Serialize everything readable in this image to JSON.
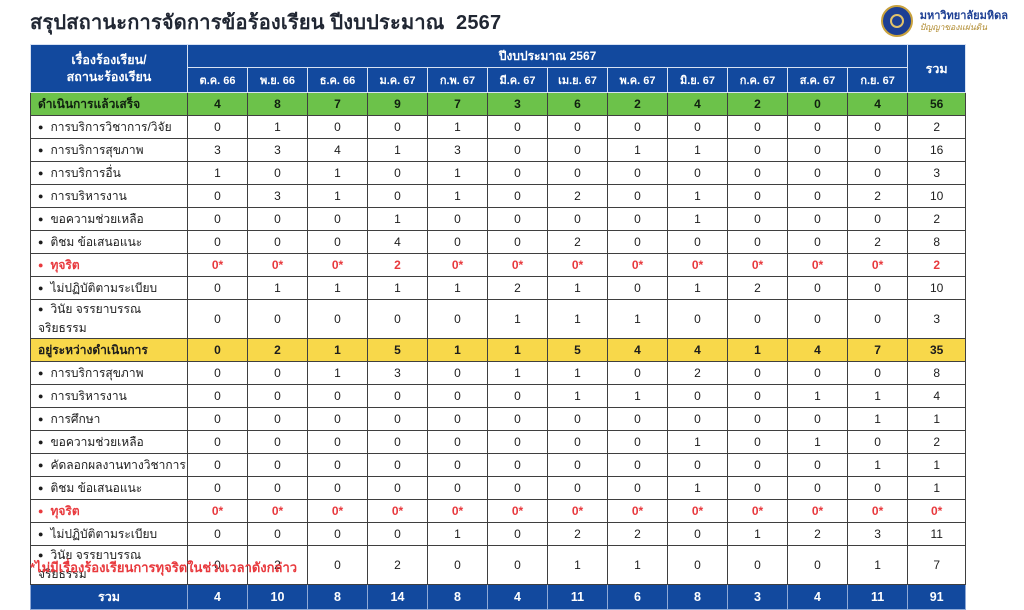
{
  "page": {
    "title": "สรุปสถานะการจัดการข้อร้องเรียน ปีงบประมาณ  2567",
    "footnote": "*ไม่มีเรื่องร้องเรียนการทุจริตในช่วงเวลาดังกล่าว",
    "logo": {
      "org_name": "มหาวิทยาลัยมหิดล",
      "org_motto": "ปัญญาของแผ่นดิน"
    }
  },
  "colors": {
    "header_blue": "#12499E",
    "done_green": "#6CC24A",
    "pending_yellow": "#F8D84A",
    "total_blue": "#12499E",
    "alert_red": "#E8393D"
  },
  "table": {
    "corner_line1": "เรื่องร้องเรียน/",
    "corner_line2": "สถานะร้องเรียน",
    "year_header": "ปีงบประมาณ 2567",
    "total_header": "รวม",
    "months": [
      "ต.ค. 66",
      "พ.ย. 66",
      "ธ.ค. 66",
      "ม.ค. 67",
      "ก.พ. 67",
      "มี.ค. 67",
      "เม.ย. 67",
      "พ.ค. 67",
      "มิ.ย. 67",
      "ก.ค. 67",
      "ส.ค. 67",
      "ก.ย. 67"
    ],
    "rows": [
      {
        "label": "ดำเนินการแล้วเสร็จ",
        "type": "done-section",
        "values": [
          "4",
          "8",
          "7",
          "9",
          "7",
          "3",
          "6",
          "2",
          "4",
          "2",
          "0",
          "4"
        ],
        "total": "56"
      },
      {
        "label": "การบริการวิชาการ/วิจัย",
        "type": "item",
        "values": [
          "0",
          "1",
          "0",
          "0",
          "1",
          "0",
          "0",
          "0",
          "0",
          "0",
          "0",
          "0"
        ],
        "total": "2"
      },
      {
        "label": "การบริการสุขภาพ",
        "type": "item",
        "values": [
          "3",
          "3",
          "4",
          "1",
          "3",
          "0",
          "0",
          "1",
          "1",
          "0",
          "0",
          "0"
        ],
        "total": "16"
      },
      {
        "label": "การบริการอื่น",
        "type": "item",
        "values": [
          "1",
          "0",
          "1",
          "0",
          "1",
          "0",
          "0",
          "0",
          "0",
          "0",
          "0",
          "0"
        ],
        "total": "3"
      },
      {
        "label": "การบริหารงาน",
        "type": "item",
        "values": [
          "0",
          "3",
          "1",
          "0",
          "1",
          "0",
          "2",
          "0",
          "1",
          "0",
          "0",
          "2"
        ],
        "total": "10"
      },
      {
        "label": "ขอความช่วยเหลือ",
        "type": "item",
        "values": [
          "0",
          "0",
          "0",
          "1",
          "0",
          "0",
          "0",
          "0",
          "1",
          "0",
          "0",
          "0"
        ],
        "total": "2"
      },
      {
        "label": "ติชม ข้อเสนอแนะ",
        "type": "item",
        "values": [
          "0",
          "0",
          "0",
          "4",
          "0",
          "0",
          "2",
          "0",
          "0",
          "0",
          "0",
          "2"
        ],
        "total": "8"
      },
      {
        "label": "ทุจริต",
        "type": "fraud",
        "values": [
          "0*",
          "0*",
          "0*",
          "2",
          "0*",
          "0*",
          "0*",
          "0*",
          "0*",
          "0*",
          "0*",
          "0*"
        ],
        "total": "2"
      },
      {
        "label": "ไม่ปฏิบัติตามระเบียบ",
        "type": "item",
        "values": [
          "0",
          "1",
          "1",
          "1",
          "1",
          "2",
          "1",
          "0",
          "1",
          "2",
          "0",
          "0"
        ],
        "total": "10"
      },
      {
        "label": "วินัย จรรยาบรรณ จริยธรรม",
        "type": "item",
        "values": [
          "0",
          "0",
          "0",
          "0",
          "0",
          "1",
          "1",
          "1",
          "0",
          "0",
          "0",
          "0"
        ],
        "total": "3"
      },
      {
        "label": "อยู่ระหว่างดำเนินการ",
        "type": "pending-section",
        "values": [
          "0",
          "2",
          "1",
          "5",
          "1",
          "1",
          "5",
          "4",
          "4",
          "1",
          "4",
          "7"
        ],
        "total": "35"
      },
      {
        "label": "การบริการสุขภาพ",
        "type": "item",
        "values": [
          "0",
          "0",
          "1",
          "3",
          "0",
          "1",
          "1",
          "0",
          "2",
          "0",
          "0",
          "0"
        ],
        "total": "8"
      },
      {
        "label": "การบริหารงาน",
        "type": "item",
        "values": [
          "0",
          "0",
          "0",
          "0",
          "0",
          "0",
          "1",
          "1",
          "0",
          "0",
          "1",
          "1"
        ],
        "total": "4"
      },
      {
        "label": "การศึกษา",
        "type": "item",
        "values": [
          "0",
          "0",
          "0",
          "0",
          "0",
          "0",
          "0",
          "0",
          "0",
          "0",
          "0",
          "1"
        ],
        "total": "1"
      },
      {
        "label": "ขอความช่วยเหลือ",
        "type": "item",
        "values": [
          "0",
          "0",
          "0",
          "0",
          "0",
          "0",
          "0",
          "0",
          "1",
          "0",
          "1",
          "0"
        ],
        "total": "2"
      },
      {
        "label": "คัดลอกผลงานทางวิชาการ",
        "type": "item",
        "values": [
          "0",
          "0",
          "0",
          "0",
          "0",
          "0",
          "0",
          "0",
          "0",
          "0",
          "0",
          "1"
        ],
        "total": "1"
      },
      {
        "label": "ติชม ข้อเสนอแนะ",
        "type": "item",
        "values": [
          "0",
          "0",
          "0",
          "0",
          "0",
          "0",
          "0",
          "0",
          "1",
          "0",
          "0",
          "0"
        ],
        "total": "1"
      },
      {
        "label": "ทุจริต",
        "type": "fraud",
        "values": [
          "0*",
          "0*",
          "0*",
          "0*",
          "0*",
          "0*",
          "0*",
          "0*",
          "0*",
          "0*",
          "0*",
          "0*"
        ],
        "total": "0*"
      },
      {
        "label": "ไม่ปฏิบัติตามระเบียบ",
        "type": "item",
        "values": [
          "0",
          "0",
          "0",
          "0",
          "1",
          "0",
          "2",
          "2",
          "0",
          "1",
          "2",
          "3"
        ],
        "total": "11"
      },
      {
        "label": "วินัย จรรยาบรรณ จริยธรรม",
        "type": "item",
        "values": [
          "0",
          "2",
          "0",
          "2",
          "0",
          "0",
          "1",
          "1",
          "0",
          "0",
          "0",
          "1"
        ],
        "total": "7"
      },
      {
        "label": "รวม",
        "type": "grand-total",
        "values": [
          "4",
          "10",
          "8",
          "14",
          "8",
          "4",
          "11",
          "6",
          "8",
          "3",
          "4",
          "11"
        ],
        "total": "91"
      }
    ]
  }
}
